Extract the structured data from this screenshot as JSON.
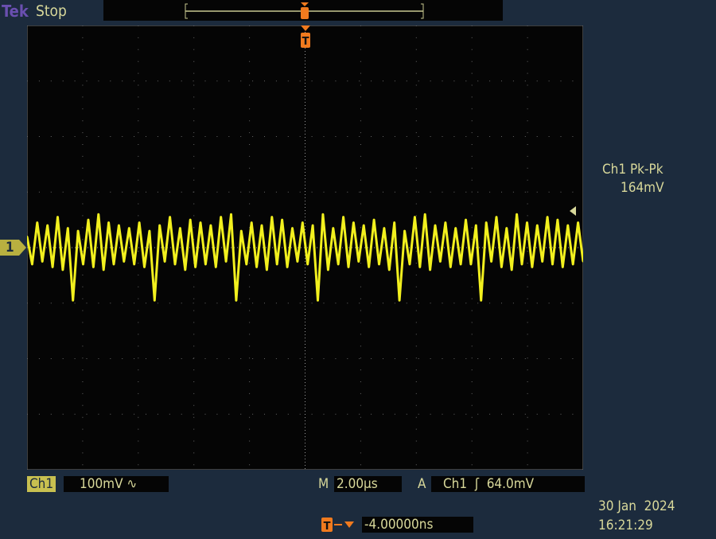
{
  "header": {
    "brand": "Tek",
    "status": "Stop"
  },
  "measurement": {
    "label": "Ch1 Pk-Pk",
    "value": "164mV"
  },
  "channel": {
    "marker": "1",
    "name": "Ch1",
    "scale": "100mV",
    "coupling_icon": "ac-coupling-icon"
  },
  "timebase": {
    "prefix": "M",
    "value": "2.00µs"
  },
  "trigger": {
    "prefix": "A",
    "source": "Ch1",
    "slope_icon": "rising-edge-icon",
    "slope_glyph": "ʃ",
    "level": "64.0mV",
    "marker": "T",
    "position": "-4.00000ns"
  },
  "datetime": {
    "date": "30 Jan  2024",
    "time": "16:21:29"
  },
  "colors": {
    "trace": "#f2f01e",
    "trigger": "#f07a1e",
    "background": "#1c2b3d",
    "text": "#d8d89a"
  },
  "chart_data": {
    "type": "line",
    "title": "",
    "xlabel": "",
    "ylabel": "",
    "x_unit": "µs",
    "y_unit": "mV",
    "xlim": [
      -10,
      10
    ],
    "ylim": [
      -400,
      400
    ],
    "divisions": {
      "x": 10,
      "y": 8
    },
    "grid": true,
    "series": [
      {
        "values": [
          20,
          -30,
          45,
          -25,
          40,
          -35,
          55,
          -40,
          35,
          -95,
          30,
          -30,
          50,
          -35,
          60,
          -40,
          45,
          -30,
          40,
          -25,
          35,
          -30,
          45,
          -35,
          30,
          -95,
          40,
          -25,
          55,
          -30,
          35,
          -40,
          50,
          -35,
          45,
          -30,
          40,
          -35,
          55,
          -25,
          60,
          -95,
          30,
          -30,
          45,
          -35,
          40,
          -40,
          55,
          -30,
          50,
          -35,
          35,
          -25,
          45,
          -30,
          40,
          -95,
          60,
          -40,
          35,
          -30,
          55,
          -35,
          45,
          -25,
          40,
          -35,
          50,
          -30,
          35,
          -40,
          45,
          -95,
          30,
          -30,
          55,
          -35,
          60,
          -40,
          40,
          -25,
          45,
          -35,
          35,
          -30,
          50,
          -30,
          40,
          -95,
          45,
          -25,
          55,
          -35,
          35,
          -40,
          60,
          -30,
          45,
          -35,
          40,
          -25,
          55,
          -30,
          50,
          -35,
          40,
          -30,
          45,
          -25
        ]
      }
    ]
  }
}
